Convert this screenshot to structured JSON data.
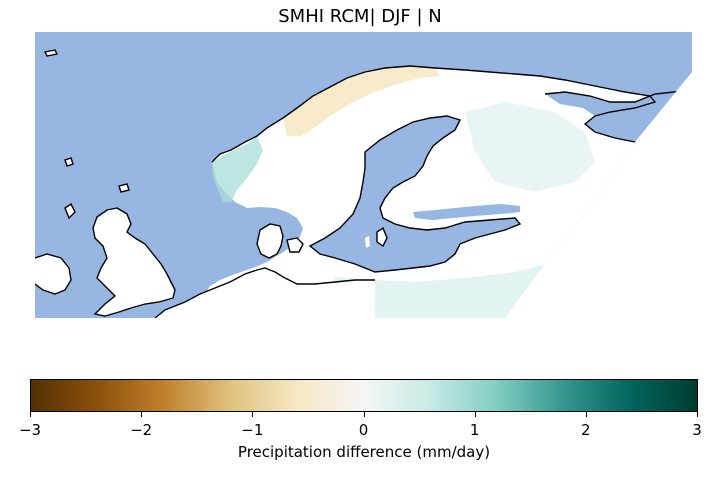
{
  "title": "SMHI RCM| DJF | N",
  "colorbar": {
    "label": "Precipitation difference (mm/day)",
    "min": -3,
    "max": 3,
    "ticks": [
      "−3",
      "−2",
      "−1",
      "0",
      "1",
      "2",
      "3"
    ],
    "colormap": "BrBG",
    "stops": [
      "#543005",
      "#8c510a",
      "#bf812d",
      "#dfc27d",
      "#f6e8c3",
      "#f5f5f5",
      "#c7eae5",
      "#80cdc1",
      "#35978f",
      "#01665e",
      "#003c30"
    ]
  },
  "map": {
    "ocean_color": "#97b6e1",
    "land_color": "#ffffff",
    "coastline_color": "#000000",
    "region": "Northern Europe / Scandinavia",
    "field_range_mm_per_day": [
      -0.5,
      1.0
    ]
  }
}
